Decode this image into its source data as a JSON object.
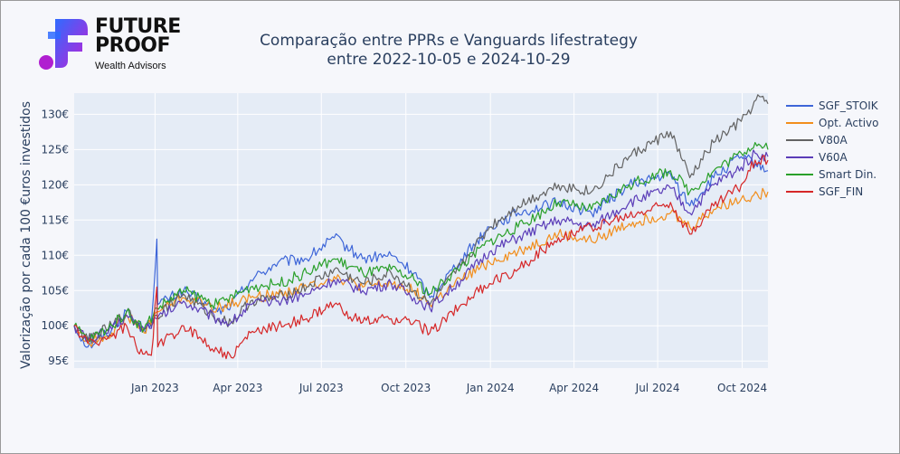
{
  "brand": {
    "line1": "FUTURE",
    "line2": "PROOF",
    "line3": "Wealth Advisors",
    "colors": {
      "gradient_start": "#2f6bff",
      "gradient_end": "#c21fd6"
    }
  },
  "chart_data": {
    "type": "line",
    "title": "Comparação entre PPRs e Vanguards lifestrategy",
    "subtitle": "entre 2022-10-05 e 2024-10-29",
    "xlabel": "",
    "ylabel": "Valorização por cada 100 €uros investidos",
    "x_start": "2022-10-05",
    "x_end": "2024-10-29",
    "ylim": [
      94,
      133
    ],
    "y_ticks": [
      95,
      100,
      105,
      110,
      115,
      120,
      125,
      130
    ],
    "y_tick_labels": [
      "95€",
      "100€",
      "105€",
      "110€",
      "115€",
      "120€",
      "125€",
      "130€"
    ],
    "x_tick_dates": [
      "2023-01-01",
      "2023-04-01",
      "2023-07-01",
      "2023-10-01",
      "2024-01-01",
      "2024-04-01",
      "2024-07-01",
      "2024-10-01"
    ],
    "x_tick_labels": [
      "Jan 2023",
      "Apr 2023",
      "Jul 2023",
      "Oct 2023",
      "Jan 2024",
      "Apr 2024",
      "Jul 2024",
      "Oct 2024"
    ],
    "grid": true,
    "legend_position": "right",
    "series": [
      {
        "name": "SGF_STOIK",
        "color": "#3e66d8",
        "points": [
          [
            "2022-10-05",
            100
          ],
          [
            "2022-10-20",
            97
          ],
          [
            "2022-11-15",
            99.5
          ],
          [
            "2022-12-01",
            102
          ],
          [
            "2022-12-20",
            99.5
          ],
          [
            "2022-12-28",
            100.5
          ],
          [
            "2023-01-03",
            112.3
          ],
          [
            "2023-01-04",
            103
          ],
          [
            "2023-02-01",
            105
          ],
          [
            "2023-03-10",
            102
          ],
          [
            "2023-03-25",
            103
          ],
          [
            "2023-04-15",
            106.5
          ],
          [
            "2023-05-15",
            109
          ],
          [
            "2023-06-15",
            109.5
          ],
          [
            "2023-07-15",
            112.5
          ],
          [
            "2023-08-15",
            109.5
          ],
          [
            "2023-09-15",
            110
          ],
          [
            "2023-10-10",
            107.5
          ],
          [
            "2023-10-27",
            104
          ],
          [
            "2023-11-30",
            109.5
          ],
          [
            "2023-12-31",
            114
          ],
          [
            "2024-01-31",
            116
          ],
          [
            "2024-03-15",
            117.5
          ],
          [
            "2024-04-20",
            116
          ],
          [
            "2024-05-31",
            120
          ],
          [
            "2024-07-15",
            121.5
          ],
          [
            "2024-08-05",
            117
          ],
          [
            "2024-08-31",
            121
          ],
          [
            "2024-09-30",
            124
          ],
          [
            "2024-10-29",
            122
          ]
        ]
      },
      {
        "name": "Opt. Activo",
        "color": "#f28e1c",
        "points": [
          [
            "2022-10-05",
            100
          ],
          [
            "2022-10-20",
            97.5
          ],
          [
            "2022-11-15",
            99
          ],
          [
            "2022-12-01",
            101.5
          ],
          [
            "2022-12-20",
            99
          ],
          [
            "2023-01-03",
            102
          ],
          [
            "2023-02-01",
            104
          ],
          [
            "2023-03-10",
            102.5
          ],
          [
            "2023-04-15",
            104
          ],
          [
            "2023-05-15",
            104.5
          ],
          [
            "2023-06-15",
            105.5
          ],
          [
            "2023-07-15",
            107
          ],
          [
            "2023-08-15",
            105.5
          ],
          [
            "2023-09-15",
            106
          ],
          [
            "2023-10-10",
            105
          ],
          [
            "2023-10-27",
            103
          ],
          [
            "2023-11-30",
            106.5
          ],
          [
            "2023-12-31",
            109
          ],
          [
            "2024-01-31",
            110.5
          ],
          [
            "2024-03-15",
            113
          ],
          [
            "2024-04-20",
            112
          ],
          [
            "2024-05-31",
            114.5
          ],
          [
            "2024-07-15",
            116
          ],
          [
            "2024-08-05",
            114
          ],
          [
            "2024-08-31",
            116.5
          ],
          [
            "2024-09-30",
            118
          ],
          [
            "2024-10-29",
            119
          ]
        ]
      },
      {
        "name": "V80A",
        "color": "#636363",
        "points": [
          [
            "2022-10-05",
            100
          ],
          [
            "2022-10-20",
            98
          ],
          [
            "2022-11-15",
            100
          ],
          [
            "2022-12-01",
            102
          ],
          [
            "2022-12-20",
            99.5
          ],
          [
            "2023-01-03",
            101.5
          ],
          [
            "2023-02-01",
            104.5
          ],
          [
            "2023-03-10",
            101
          ],
          [
            "2023-03-25",
            100.5
          ],
          [
            "2023-04-15",
            103.5
          ],
          [
            "2023-05-15",
            104
          ],
          [
            "2023-06-15",
            105.5
          ],
          [
            "2023-07-15",
            108
          ],
          [
            "2023-08-15",
            106
          ],
          [
            "2023-09-15",
            107.5
          ],
          [
            "2023-10-10",
            105
          ],
          [
            "2023-10-27",
            103
          ],
          [
            "2023-11-30",
            108.5
          ],
          [
            "2023-12-31",
            114
          ],
          [
            "2024-01-31",
            117
          ],
          [
            "2024-03-15",
            120
          ],
          [
            "2024-04-20",
            119
          ],
          [
            "2024-05-31",
            124
          ],
          [
            "2024-07-15",
            127.5
          ],
          [
            "2024-08-05",
            121
          ],
          [
            "2024-08-31",
            126
          ],
          [
            "2024-09-30",
            129
          ],
          [
            "2024-10-20",
            132.5
          ],
          [
            "2024-10-29",
            131.5
          ]
        ]
      },
      {
        "name": "V60A",
        "color": "#5b3db8",
        "points": [
          [
            "2022-10-05",
            100
          ],
          [
            "2022-10-20",
            98
          ],
          [
            "2022-11-15",
            99.5
          ],
          [
            "2022-12-01",
            101.5
          ],
          [
            "2022-12-20",
            99.5
          ],
          [
            "2023-01-03",
            101
          ],
          [
            "2023-02-01",
            103.5
          ],
          [
            "2023-03-10",
            101
          ],
          [
            "2023-03-25",
            100.5
          ],
          [
            "2023-04-15",
            103
          ],
          [
            "2023-05-15",
            103.5
          ],
          [
            "2023-06-15",
            104.5
          ],
          [
            "2023-07-15",
            106.5
          ],
          [
            "2023-08-15",
            105
          ],
          [
            "2023-09-15",
            106
          ],
          [
            "2023-10-10",
            104
          ],
          [
            "2023-10-27",
            102.5
          ],
          [
            "2023-11-30",
            106.5
          ],
          [
            "2023-12-31",
            110.5
          ],
          [
            "2024-01-31",
            112.5
          ],
          [
            "2024-03-15",
            115
          ],
          [
            "2024-04-20",
            114
          ],
          [
            "2024-05-31",
            117.5
          ],
          [
            "2024-07-15",
            119.5
          ],
          [
            "2024-08-05",
            116
          ],
          [
            "2024-08-31",
            120
          ],
          [
            "2024-09-30",
            122.5
          ],
          [
            "2024-10-15",
            124.5
          ],
          [
            "2024-10-29",
            124
          ]
        ]
      },
      {
        "name": "Smart Din.",
        "color": "#2aa02a",
        "points": [
          [
            "2022-10-05",
            100
          ],
          [
            "2022-10-20",
            98
          ],
          [
            "2022-11-15",
            100
          ],
          [
            "2022-12-01",
            102
          ],
          [
            "2022-12-20",
            99.5
          ],
          [
            "2023-01-03",
            102.5
          ],
          [
            "2023-02-01",
            105
          ],
          [
            "2023-03-10",
            103
          ],
          [
            "2023-04-15",
            105.5
          ],
          [
            "2023-05-15",
            106
          ],
          [
            "2023-06-15",
            107.5
          ],
          [
            "2023-07-15",
            109.5
          ],
          [
            "2023-08-15",
            107.5
          ],
          [
            "2023-09-15",
            108
          ],
          [
            "2023-10-10",
            106.5
          ],
          [
            "2023-10-27",
            104.5
          ],
          [
            "2023-11-30",
            108.5
          ],
          [
            "2023-12-31",
            112
          ],
          [
            "2024-01-31",
            114
          ],
          [
            "2024-03-15",
            117.5
          ],
          [
            "2024-04-20",
            116.5
          ],
          [
            "2024-05-31",
            120
          ],
          [
            "2024-07-15",
            122
          ],
          [
            "2024-08-05",
            119
          ],
          [
            "2024-08-31",
            122
          ],
          [
            "2024-09-30",
            124.5
          ],
          [
            "2024-10-15",
            126
          ],
          [
            "2024-10-29",
            125
          ]
        ]
      },
      {
        "name": "SGF_FIN",
        "color": "#d62728",
        "points": [
          [
            "2022-10-05",
            100
          ],
          [
            "2022-10-20",
            97.5
          ],
          [
            "2022-11-15",
            98.5
          ],
          [
            "2022-12-01",
            100
          ],
          [
            "2022-12-15",
            96
          ],
          [
            "2022-12-28",
            95.8
          ],
          [
            "2023-01-03",
            105.5
          ],
          [
            "2023-01-04",
            97
          ],
          [
            "2023-02-01",
            100
          ],
          [
            "2023-03-10",
            96.5
          ],
          [
            "2023-03-25",
            95.5
          ],
          [
            "2023-04-15",
            99
          ],
          [
            "2023-05-15",
            100
          ],
          [
            "2023-06-15",
            101
          ],
          [
            "2023-07-15",
            103
          ],
          [
            "2023-08-15",
            100.5
          ],
          [
            "2023-09-15",
            101
          ],
          [
            "2023-10-10",
            100.5
          ],
          [
            "2023-10-27",
            99
          ],
          [
            "2023-11-30",
            103
          ],
          [
            "2023-12-31",
            106
          ],
          [
            "2024-01-31",
            108
          ],
          [
            "2024-03-15",
            112.5
          ],
          [
            "2024-04-20",
            114
          ],
          [
            "2024-05-31",
            115.5
          ],
          [
            "2024-07-15",
            117.5
          ],
          [
            "2024-08-05",
            113
          ],
          [
            "2024-08-31",
            117
          ],
          [
            "2024-09-30",
            120
          ],
          [
            "2024-10-15",
            123.5
          ],
          [
            "2024-10-29",
            123.5
          ]
        ]
      }
    ]
  }
}
